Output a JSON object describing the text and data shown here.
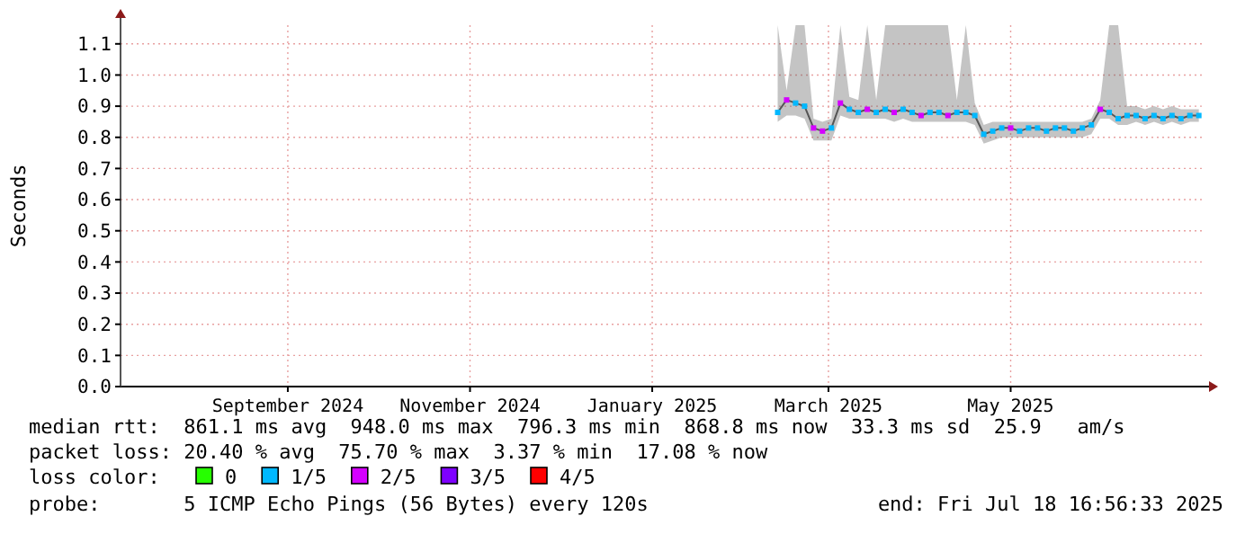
{
  "chart_data": {
    "type": "line",
    "ylabel": "Seconds",
    "legend_title": "loss color:",
    "legend": "bottom",
    "grid": true,
    "xlim": [
      "2024-07-22",
      "2025-07-19"
    ],
    "xticks": [
      {
        "value": "2024-09-16",
        "label": "September 2024"
      },
      {
        "value": "2024-11-16",
        "label": "November 2024"
      },
      {
        "value": "2025-01-16",
        "label": "January 2025"
      },
      {
        "value": "2025-03-16",
        "label": "March 2025"
      },
      {
        "value": "2025-05-16",
        "label": "May 2025"
      }
    ],
    "ylim": [
      0,
      1.16
    ],
    "yticks": [
      {
        "value": 0,
        "label": "0.0"
      },
      {
        "value": 0.1,
        "label": "0.1"
      },
      {
        "value": 0.2,
        "label": "0.2"
      },
      {
        "value": 0.3,
        "label": "0.3"
      },
      {
        "value": 0.4,
        "label": "0.4"
      },
      {
        "value": 0.5,
        "label": "0.5"
      },
      {
        "value": 0.6,
        "label": "0.6"
      },
      {
        "value": 0.7,
        "label": "0.7"
      },
      {
        "value": 0.8,
        "label": "0.8"
      },
      {
        "value": 0.9,
        "label": "0.9"
      },
      {
        "value": 1.0,
        "label": "1.0"
      },
      {
        "value": 1.1,
        "label": "1.1"
      }
    ],
    "series": [
      {
        "color": "#555555",
        "x": [
          "2025-02-27",
          "2025-03-02",
          "2025-03-05",
          "2025-03-08",
          "2025-03-11",
          "2025-03-14",
          "2025-03-17",
          "2025-03-20",
          "2025-03-23",
          "2025-03-26",
          "2025-03-29",
          "2025-04-01",
          "2025-04-04",
          "2025-04-07",
          "2025-04-10",
          "2025-04-13",
          "2025-04-16",
          "2025-04-19",
          "2025-04-22",
          "2025-04-25",
          "2025-04-28",
          "2025-05-01",
          "2025-05-04",
          "2025-05-07",
          "2025-05-10",
          "2025-05-13",
          "2025-05-16",
          "2025-05-19",
          "2025-05-22",
          "2025-05-25",
          "2025-05-28",
          "2025-05-31",
          "2025-06-03",
          "2025-06-06",
          "2025-06-09",
          "2025-06-12",
          "2025-06-15",
          "2025-06-18",
          "2025-06-21",
          "2025-06-24",
          "2025-06-27",
          "2025-06-30",
          "2025-07-03",
          "2025-07-06",
          "2025-07-09",
          "2025-07-12",
          "2025-07-15",
          "2025-07-18"
        ],
        "values": [
          0.88,
          0.92,
          0.91,
          0.9,
          0.83,
          0.82,
          0.83,
          0.91,
          0.89,
          0.88,
          0.89,
          0.88,
          0.89,
          0.88,
          0.89,
          0.88,
          0.87,
          0.88,
          0.88,
          0.87,
          0.88,
          0.88,
          0.87,
          0.81,
          0.82,
          0.83,
          0.83,
          0.82,
          0.83,
          0.83,
          0.82,
          0.83,
          0.83,
          0.82,
          0.83,
          0.84,
          0.89,
          0.88,
          0.86,
          0.87,
          0.87,
          0.86,
          0.87,
          0.86,
          0.87,
          0.86,
          0.87,
          0.87
        ],
        "lower": [
          0.85,
          0.87,
          0.87,
          0.86,
          0.79,
          0.79,
          0.79,
          0.87,
          0.86,
          0.86,
          0.86,
          0.86,
          0.86,
          0.85,
          0.86,
          0.85,
          0.85,
          0.85,
          0.85,
          0.85,
          0.85,
          0.85,
          0.84,
          0.78,
          0.79,
          0.8,
          0.8,
          0.8,
          0.8,
          0.8,
          0.8,
          0.8,
          0.8,
          0.8,
          0.8,
          0.81,
          0.86,
          0.86,
          0.84,
          0.84,
          0.85,
          0.84,
          0.85,
          0.84,
          0.85,
          0.84,
          0.85,
          0.85
        ],
        "upper": [
          1.16,
          0.95,
          1.16,
          1.16,
          0.86,
          0.85,
          0.86,
          1.16,
          0.93,
          0.92,
          1.16,
          0.92,
          1.16,
          1.16,
          1.16,
          1.16,
          1.16,
          1.16,
          1.16,
          1.16,
          0.92,
          1.16,
          0.91,
          0.84,
          0.85,
          0.85,
          0.85,
          0.85,
          0.85,
          0.85,
          0.85,
          0.85,
          0.85,
          0.85,
          0.85,
          0.86,
          0.92,
          1.16,
          1.16,
          0.9,
          0.9,
          0.89,
          0.9,
          0.89,
          0.9,
          0.89,
          0.89,
          0.89
        ]
      },
      {
        "type": "scatter",
        "name": "0",
        "color": "#26ff00"
      },
      {
        "type": "scatter",
        "marker": "square",
        "name": "1/5",
        "color": "#00b8ff",
        "x": [
          "2025-02-27",
          "2025-03-05",
          "2025-03-08",
          "2025-03-17",
          "2025-03-23",
          "2025-03-26",
          "2025-04-01",
          "2025-04-04",
          "2025-04-10",
          "2025-04-13",
          "2025-04-19",
          "2025-04-22",
          "2025-04-28",
          "2025-05-01",
          "2025-05-04",
          "2025-05-07",
          "2025-05-10",
          "2025-05-13",
          "2025-05-19",
          "2025-05-22",
          "2025-05-25",
          "2025-05-28",
          "2025-05-31",
          "2025-06-03",
          "2025-06-06",
          "2025-06-09",
          "2025-06-12",
          "2025-06-18",
          "2025-06-21",
          "2025-06-24",
          "2025-06-27",
          "2025-06-30",
          "2025-07-03",
          "2025-07-06",
          "2025-07-09",
          "2025-07-12",
          "2025-07-15",
          "2025-07-18"
        ],
        "values": [
          0.88,
          0.91,
          0.9,
          0.83,
          0.89,
          0.88,
          0.88,
          0.89,
          0.89,
          0.88,
          0.88,
          0.88,
          0.88,
          0.88,
          0.87,
          0.81,
          0.82,
          0.83,
          0.82,
          0.83,
          0.83,
          0.82,
          0.83,
          0.83,
          0.82,
          0.83,
          0.84,
          0.88,
          0.86,
          0.87,
          0.87,
          0.86,
          0.87,
          0.86,
          0.87,
          0.86,
          0.87,
          0.87
        ]
      },
      {
        "type": "scatter",
        "marker": "square",
        "name": "2/5",
        "color": "#d400ff",
        "x": [
          "2025-03-02",
          "2025-03-11",
          "2025-03-14",
          "2025-03-20",
          "2025-03-29",
          "2025-04-07",
          "2025-04-16",
          "2025-04-25",
          "2025-05-16",
          "2025-06-15"
        ],
        "values": [
          0.92,
          0.83,
          0.82,
          0.91,
          0.89,
          0.88,
          0.87,
          0.87,
          0.83,
          0.89
        ]
      },
      {
        "type": "scatter",
        "name": "3/5",
        "color": "#7e00ff"
      },
      {
        "type": "scatter",
        "name": "4/5",
        "color": "#ff0000"
      }
    ],
    "annotations": [
      "median rtt:  861.1 ms avg  948.0 ms max  796.3 ms min  868.8 ms now  33.3 ms sd  25.9   am/s",
      "packet loss: 20.40 % avg  75.70 % max  3.37 % min  17.08 % now",
      "probe:       5 ICMP Echo Pings (56 Bytes) every 120s",
      "end: Fri Jul 18 16:56:33 2025"
    ]
  }
}
